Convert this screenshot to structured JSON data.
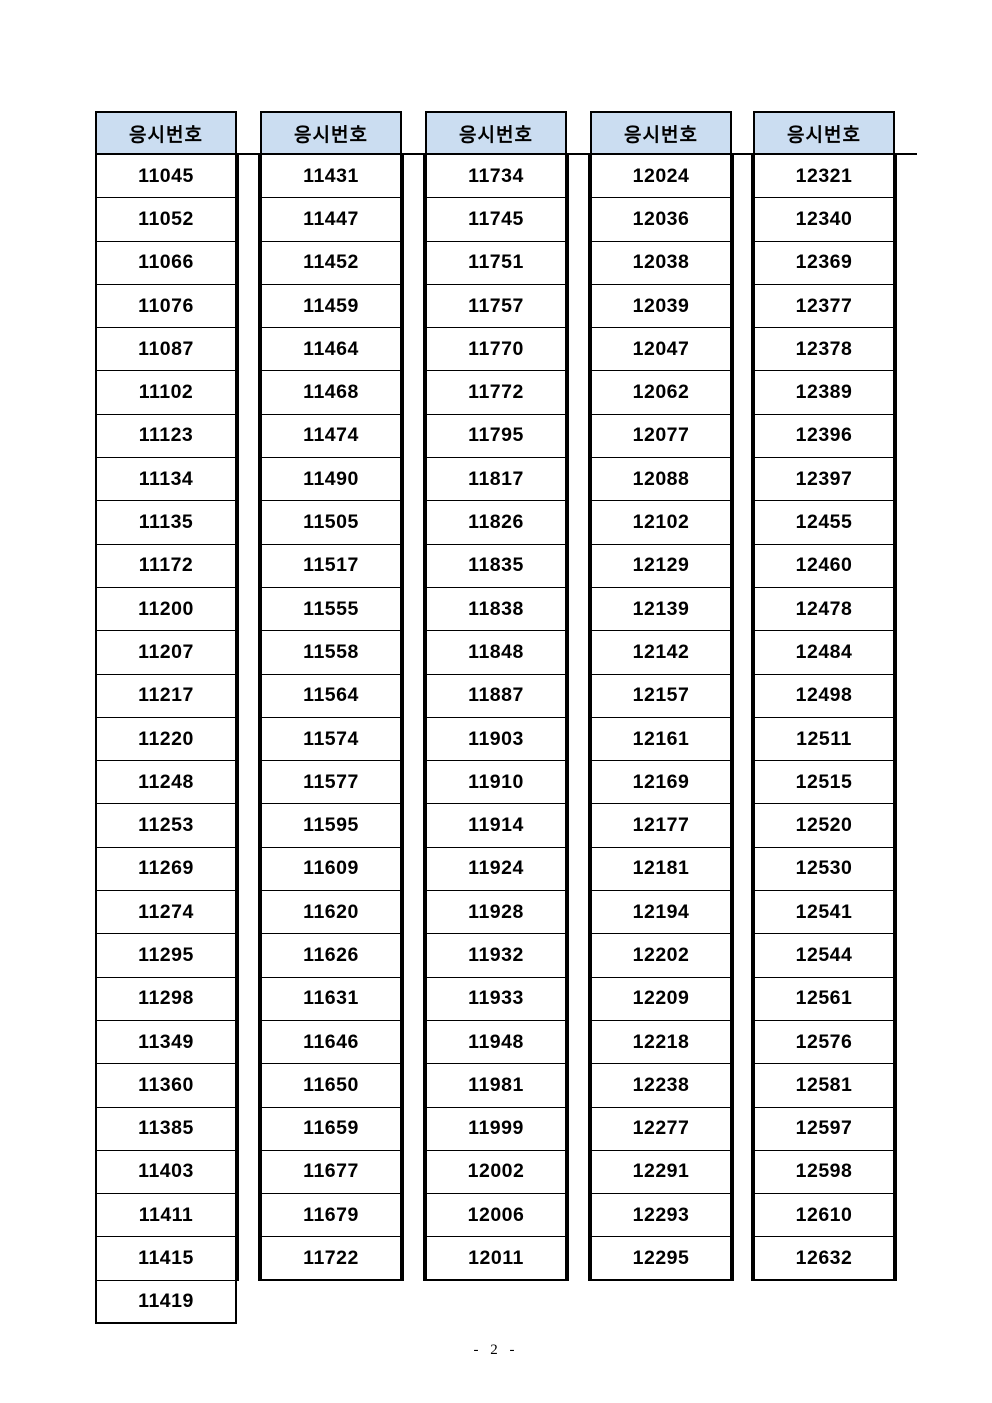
{
  "document": {
    "header_label": "응시번호",
    "header_bg": "#CBDDF1",
    "border_color": "#000000",
    "columns": [
      {
        "numbers": [
          "11045",
          "11052",
          "11066",
          "11076",
          "11087",
          "11102",
          "11123",
          "11134",
          "11135",
          "11172",
          "11200",
          "11207",
          "11217",
          "11220",
          "11248",
          "11253",
          "11269",
          "11274",
          "11295",
          "11298",
          "11349",
          "11360",
          "11385",
          "11403",
          "11411",
          "11415",
          "11419"
        ]
      },
      {
        "numbers": [
          "11431",
          "11447",
          "11452",
          "11459",
          "11464",
          "11468",
          "11474",
          "11490",
          "11505",
          "11517",
          "11555",
          "11558",
          "11564",
          "11574",
          "11577",
          "11595",
          "11609",
          "11620",
          "11626",
          "11631",
          "11646",
          "11650",
          "11659",
          "11677",
          "11679",
          "11722"
        ]
      },
      {
        "numbers": [
          "11734",
          "11745",
          "11751",
          "11757",
          "11770",
          "11772",
          "11795",
          "11817",
          "11826",
          "11835",
          "11838",
          "11848",
          "11887",
          "11903",
          "11910",
          "11914",
          "11924",
          "11928",
          "11932",
          "11933",
          "11948",
          "11981",
          "11999",
          "12002",
          "12006",
          "12011"
        ]
      },
      {
        "numbers": [
          "12024",
          "12036",
          "12038",
          "12039",
          "12047",
          "12062",
          "12077",
          "12088",
          "12102",
          "12129",
          "12139",
          "12142",
          "12157",
          "12161",
          "12169",
          "12177",
          "12181",
          "12194",
          "12202",
          "12209",
          "12218",
          "12238",
          "12277",
          "12291",
          "12293",
          "12295"
        ]
      },
      {
        "numbers": [
          "12321",
          "12340",
          "12369",
          "12377",
          "12378",
          "12389",
          "12396",
          "12397",
          "12455",
          "12460",
          "12478",
          "12484",
          "12498",
          "12511",
          "12515",
          "12520",
          "12530",
          "12541",
          "12544",
          "12561",
          "12576",
          "12581",
          "12597",
          "12598",
          "12610",
          "12632"
        ]
      }
    ],
    "footer": {
      "page_label": "- 2 -"
    }
  }
}
